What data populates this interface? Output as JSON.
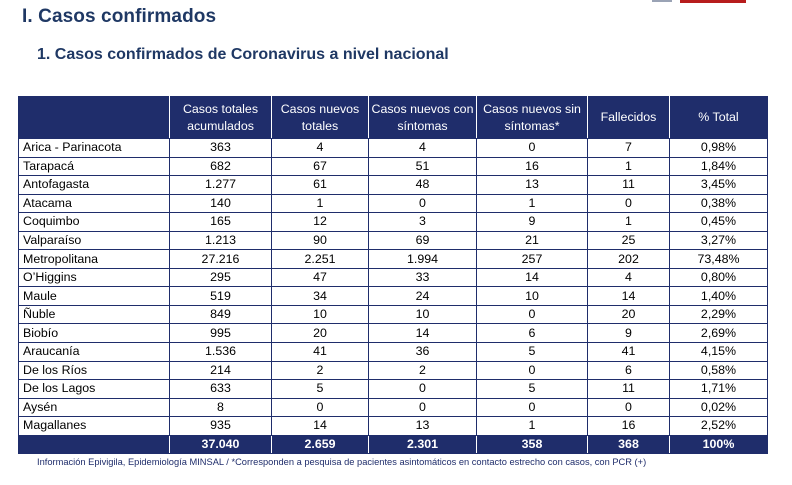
{
  "section_title": "I. Casos confirmados",
  "subtitle": "1. Casos confirmados de Coronavirus a nivel nacional",
  "table": {
    "headers": [
      "",
      "Casos totales acumulados",
      "Casos nuevos totales",
      "Casos nuevos con síntomas",
      "Casos nuevos sin síntomas*",
      "Fallecidos",
      "% Total"
    ],
    "rows": [
      [
        "Arica - Parinacota",
        "363",
        "4",
        "4",
        "0",
        "7",
        "0,98%"
      ],
      [
        "Tarapacá",
        "682",
        "67",
        "51",
        "16",
        "1",
        "1,84%"
      ],
      [
        "Antofagasta",
        "1.277",
        "61",
        "48",
        "13",
        "11",
        "3,45%"
      ],
      [
        "Atacama",
        "140",
        "1",
        "0",
        "1",
        "0",
        "0,38%"
      ],
      [
        "Coquimbo",
        "165",
        "12",
        "3",
        "9",
        "1",
        "0,45%"
      ],
      [
        "Valparaíso",
        "1.213",
        "90",
        "69",
        "21",
        "25",
        "3,27%"
      ],
      [
        "Metropolitana",
        "27.216",
        "2.251",
        "1.994",
        "257",
        "202",
        "73,48%"
      ],
      [
        "O’Higgins",
        "295",
        "47",
        "33",
        "14",
        "4",
        "0,80%"
      ],
      [
        "Maule",
        "519",
        "34",
        "24",
        "10",
        "14",
        "1,40%"
      ],
      [
        "Ñuble",
        "849",
        "10",
        "10",
        "0",
        "20",
        "2,29%"
      ],
      [
        "Biobío",
        "995",
        "20",
        "14",
        "6",
        "9",
        "2,69%"
      ],
      [
        "Araucanía",
        "1.536",
        "41",
        "36",
        "5",
        "41",
        "4,15%"
      ],
      [
        "De los Ríos",
        "214",
        "2",
        "2",
        "0",
        "6",
        "0,58%"
      ],
      [
        "De los Lagos",
        "633",
        "5",
        "0",
        "5",
        "11",
        "1,71%"
      ],
      [
        "Aysén",
        "8",
        "0",
        "0",
        "0",
        "0",
        "0,02%"
      ],
      [
        "Magallanes",
        "935",
        "14",
        "13",
        "1",
        "16",
        "2,52%"
      ]
    ],
    "totals": [
      "",
      "37.040",
      "2.659",
      "2.301",
      "358",
      "368",
      "100%"
    ]
  },
  "footnote": "Información Epivigila, Epidemiología MINSAL / *Corresponden a pesquisa de pacientes asintomáticos en contacto estrecho con casos, con PCR (+)",
  "colors": {
    "header_bg": "#1f2d6b",
    "title_color": "#1f3864",
    "accent_bar": "#b71c1c"
  }
}
